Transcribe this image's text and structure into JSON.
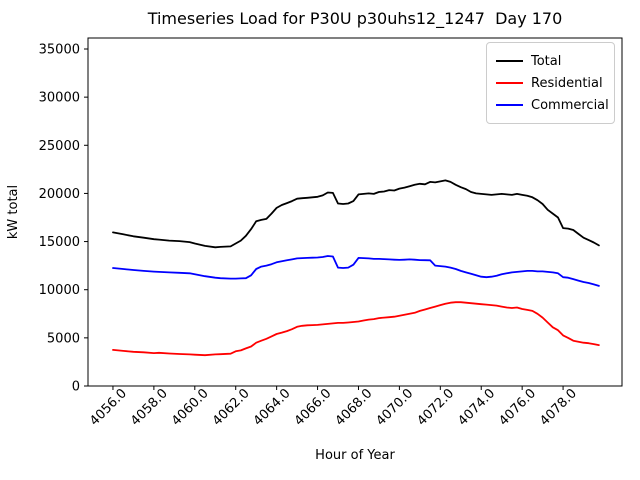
{
  "chart_data": {
    "type": "line",
    "title": "Timeseries Load for P30U p30uhs12_1247  Day 170",
    "xlabel": "Hour of Year",
    "ylabel": "kW total",
    "xlim": [
      4054.78,
      4080.88
    ],
    "ylim": [
      0,
      36142
    ],
    "grid": false,
    "legend_position": "upper right",
    "xtick_values": [
      4056,
      4058,
      4060,
      4062,
      4064,
      4066,
      4068,
      4070,
      4072,
      4074,
      4076,
      4078
    ],
    "xtick_labels": [
      "4056.0",
      "4058.0",
      "4060.0",
      "4062.0",
      "4064.0",
      "4066.0",
      "4068.0",
      "4070.0",
      "4072.0",
      "4074.0",
      "4076.0",
      "4078.0"
    ],
    "ytick_values": [
      0,
      5000,
      10000,
      15000,
      20000,
      25000,
      30000,
      35000
    ],
    "ytick_labels": [
      "0",
      "5000",
      "10000",
      "15000",
      "20000",
      "25000",
      "30000",
      "35000"
    ],
    "x": [
      4056.0,
      4056.5,
      4057.0,
      4057.5,
      4058.0,
      4058.25,
      4058.75,
      4059.25,
      4059.75,
      4060.0,
      4060.5,
      4061.0,
      4061.25,
      4061.75,
      4062.0,
      4062.25,
      4062.5,
      4062.75,
      4063.0,
      4063.25,
      4063.5,
      4063.75,
      4064.0,
      4064.25,
      4064.5,
      4064.75,
      4065.0,
      4065.25,
      4065.5,
      4065.75,
      4066.0,
      4066.25,
      4066.5,
      4066.75,
      4067.0,
      4067.25,
      4067.5,
      4067.75,
      4068.0,
      4068.25,
      4068.5,
      4068.75,
      4069.0,
      4069.25,
      4069.5,
      4069.75,
      4070.0,
      4070.25,
      4070.5,
      4070.75,
      4071.0,
      4071.25,
      4071.5,
      4071.75,
      4072.0,
      4072.25,
      4072.5,
      4072.75,
      4073.0,
      4073.25,
      4073.5,
      4073.75,
      4074.0,
      4074.25,
      4074.5,
      4074.75,
      4075.0,
      4075.25,
      4075.5,
      4075.75,
      4076.0,
      4076.25,
      4076.5,
      4076.75,
      4077.0,
      4077.25,
      4077.5,
      4077.75,
      4078.0,
      4078.25,
      4078.5,
      4078.75,
      4079.0,
      4079.25,
      4079.5,
      4079.75
    ],
    "series": [
      {
        "name": "Total",
        "color": "#000000",
        "values": [
          15950,
          15750,
          15550,
          15400,
          15250,
          15200,
          15100,
          15050,
          14950,
          14800,
          14550,
          14400,
          14450,
          14500,
          14800,
          15100,
          15600,
          16300,
          17100,
          17250,
          17350,
          17900,
          18500,
          18800,
          19000,
          19200,
          19450,
          19500,
          19550,
          19600,
          19650,
          19800,
          20100,
          20050,
          18950,
          18900,
          18950,
          19200,
          19900,
          19950,
          20000,
          19950,
          20150,
          20200,
          20350,
          20300,
          20500,
          20600,
          20750,
          20900,
          21000,
          20950,
          21200,
          21150,
          21250,
          21350,
          21200,
          20900,
          20650,
          20450,
          20150,
          20000,
          19950,
          19900,
          19850,
          19900,
          19950,
          19900,
          19850,
          19950,
          19850,
          19750,
          19600,
          19300,
          18900,
          18300,
          17900,
          17500,
          16400,
          16350,
          16200,
          15800,
          15400,
          15150,
          14900,
          14600
        ]
      },
      {
        "name": "Residential",
        "color": "#ff0000",
        "values": [
          3750,
          3650,
          3550,
          3500,
          3420,
          3450,
          3380,
          3320,
          3280,
          3250,
          3200,
          3280,
          3300,
          3350,
          3600,
          3700,
          3900,
          4100,
          4500,
          4700,
          4900,
          5150,
          5400,
          5550,
          5700,
          5900,
          6150,
          6250,
          6300,
          6320,
          6350,
          6400,
          6450,
          6500,
          6550,
          6550,
          6600,
          6650,
          6700,
          6800,
          6900,
          6950,
          7050,
          7100,
          7150,
          7200,
          7300,
          7400,
          7500,
          7600,
          7800,
          7950,
          8100,
          8250,
          8400,
          8550,
          8650,
          8700,
          8700,
          8650,
          8600,
          8550,
          8500,
          8450,
          8400,
          8350,
          8250,
          8150,
          8100,
          8150,
          8000,
          7900,
          7800,
          7500,
          7100,
          6600,
          6100,
          5800,
          5250,
          5000,
          4700,
          4600,
          4500,
          4450,
          4350,
          4250
        ]
      },
      {
        "name": "Commercial",
        "color": "#0000ff",
        "values": [
          12250,
          12150,
          12050,
          11950,
          11880,
          11850,
          11800,
          11760,
          11700,
          11600,
          11400,
          11250,
          11200,
          11150,
          11150,
          11180,
          11200,
          11500,
          12150,
          12400,
          12500,
          12650,
          12850,
          12950,
          13050,
          13150,
          13250,
          13280,
          13300,
          13320,
          13350,
          13400,
          13500,
          13450,
          12300,
          12250,
          12300,
          12600,
          13300,
          13280,
          13250,
          13200,
          13200,
          13180,
          13150,
          13120,
          13100,
          13120,
          13150,
          13120,
          13080,
          13060,
          13050,
          12500,
          12450,
          12400,
          12300,
          12150,
          11950,
          11800,
          11650,
          11500,
          11350,
          11300,
          11350,
          11450,
          11600,
          11700,
          11800,
          11850,
          11900,
          11950,
          11950,
          11900,
          11900,
          11850,
          11800,
          11700,
          11300,
          11250,
          11100,
          10950,
          10800,
          10700,
          10550,
          10400
        ]
      }
    ]
  }
}
